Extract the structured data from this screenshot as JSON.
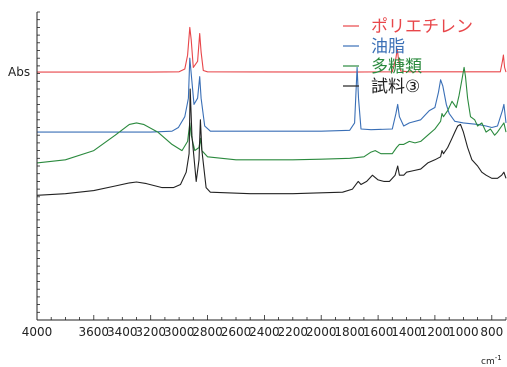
{
  "chart_data": {
    "type": "line",
    "title": "",
    "ylabel": "Abs",
    "xunit": "cm",
    "xunit_exp": "-1",
    "xlim": [
      4000,
      700
    ],
    "xticks": [
      4000,
      3600,
      3200,
      2800,
      2400,
      2000,
      1600,
      1200,
      800
    ],
    "xtick_labels": [
      "4000",
      "3600",
      "3200",
      "2800",
      "2400",
      "2000",
      "1600",
      "1200",
      "800"
    ],
    "extra_xtick_labels": [
      {
        "value": 3400,
        "label": "3400"
      },
      {
        "value": 3000,
        "label": "3000"
      },
      {
        "value": 2600,
        "label": "2600"
      },
      {
        "value": 2200,
        "label": "2200"
      },
      {
        "value": 1800,
        "label": "1800"
      },
      {
        "value": 1400,
        "label": "1400"
      },
      {
        "value": 1000,
        "label": "1000"
      }
    ],
    "ylim": [
      0,
      100
    ],
    "grid": false,
    "legend_position": "top-right",
    "series": [
      {
        "name": "ポリエチレン",
        "color": "#e8464a",
        "points": [
          [
            4000,
            80.5
          ],
          [
            3200,
            80.5
          ],
          [
            3000,
            80.6
          ],
          [
            2960,
            81.5
          ],
          [
            2940,
            86
          ],
          [
            2925,
            95
          ],
          [
            2915,
            91
          ],
          [
            2900,
            82
          ],
          [
            2870,
            84
          ],
          [
            2855,
            93
          ],
          [
            2845,
            87
          ],
          [
            2830,
            81
          ],
          [
            2800,
            80.6
          ],
          [
            1800,
            80.5
          ],
          [
            1500,
            80.6
          ],
          [
            1475,
            85
          ],
          [
            1465,
            88
          ],
          [
            1455,
            84
          ],
          [
            1440,
            80.8
          ],
          [
            1380,
            80.6
          ],
          [
            740,
            80.6
          ],
          [
            725,
            84
          ],
          [
            718,
            86
          ],
          [
            710,
            82
          ],
          [
            700,
            80.5
          ]
        ]
      },
      {
        "name": "油脂",
        "color": "#3a6fb6",
        "points": [
          [
            4000,
            61
          ],
          [
            3200,
            61
          ],
          [
            3050,
            61.3
          ],
          [
            3005,
            62.5
          ],
          [
            2960,
            66
          ],
          [
            2935,
            72
          ],
          [
            2925,
            85
          ],
          [
            2915,
            80
          ],
          [
            2895,
            70
          ],
          [
            2870,
            72
          ],
          [
            2855,
            79
          ],
          [
            2845,
            72
          ],
          [
            2820,
            63
          ],
          [
            2780,
            61.3
          ],
          [
            2000,
            61.3
          ],
          [
            1800,
            61.6
          ],
          [
            1765,
            64
          ],
          [
            1748,
            82
          ],
          [
            1738,
            72
          ],
          [
            1720,
            62
          ],
          [
            1650,
            61.8
          ],
          [
            1500,
            62
          ],
          [
            1475,
            67
          ],
          [
            1462,
            70
          ],
          [
            1450,
            66
          ],
          [
            1420,
            63
          ],
          [
            1380,
            64
          ],
          [
            1300,
            65
          ],
          [
            1240,
            68
          ],
          [
            1200,
            69
          ],
          [
            1175,
            74
          ],
          [
            1160,
            78
          ],
          [
            1145,
            76
          ],
          [
            1120,
            70
          ],
          [
            1100,
            67
          ],
          [
            1060,
            64.5
          ],
          [
            1000,
            64
          ],
          [
            900,
            63.5
          ],
          [
            840,
            63
          ],
          [
            800,
            62.5
          ],
          [
            760,
            63
          ],
          [
            725,
            68
          ],
          [
            715,
            70
          ],
          [
            705,
            66
          ],
          [
            700,
            64
          ]
        ]
      },
      {
        "name": "多糖類",
        "color": "#2b8a3e",
        "points": [
          [
            4000,
            51
          ],
          [
            3800,
            52
          ],
          [
            3600,
            55
          ],
          [
            3450,
            60
          ],
          [
            3350,
            63.5
          ],
          [
            3300,
            64
          ],
          [
            3250,
            63.5
          ],
          [
            3150,
            61
          ],
          [
            3050,
            57
          ],
          [
            2980,
            55
          ],
          [
            2940,
            58
          ],
          [
            2925,
            64
          ],
          [
            2915,
            60
          ],
          [
            2890,
            55
          ],
          [
            2860,
            56
          ],
          [
            2850,
            59
          ],
          [
            2840,
            55
          ],
          [
            2800,
            53
          ],
          [
            2600,
            52
          ],
          [
            2200,
            52
          ],
          [
            2000,
            52.2
          ],
          [
            1800,
            52.5
          ],
          [
            1700,
            53
          ],
          [
            1650,
            54.5
          ],
          [
            1620,
            55
          ],
          [
            1580,
            54
          ],
          [
            1500,
            54
          ],
          [
            1470,
            56
          ],
          [
            1450,
            57
          ],
          [
            1420,
            57
          ],
          [
            1380,
            58
          ],
          [
            1340,
            57.5
          ],
          [
            1300,
            58
          ],
          [
            1250,
            60
          ],
          [
            1200,
            62
          ],
          [
            1160,
            64.5
          ],
          [
            1150,
            67
          ],
          [
            1140,
            66
          ],
          [
            1110,
            68
          ],
          [
            1080,
            71
          ],
          [
            1050,
            69
          ],
          [
            1030,
            73
          ],
          [
            1010,
            78
          ],
          [
            995,
            82
          ],
          [
            985,
            79
          ],
          [
            970,
            72
          ],
          [
            950,
            66
          ],
          [
            920,
            65
          ],
          [
            900,
            63
          ],
          [
            870,
            64
          ],
          [
            840,
            61
          ],
          [
            810,
            62
          ],
          [
            780,
            60
          ],
          [
            760,
            61
          ],
          [
            730,
            63
          ],
          [
            715,
            64
          ],
          [
            700,
            61
          ]
        ]
      },
      {
        "name": "試料③",
        "color": "#222222",
        "points": [
          [
            4000,
            40.5
          ],
          [
            3800,
            41
          ],
          [
            3600,
            42
          ],
          [
            3450,
            43.5
          ],
          [
            3350,
            44.5
          ],
          [
            3300,
            44.8
          ],
          [
            3230,
            44.3
          ],
          [
            3120,
            43
          ],
          [
            3040,
            43
          ],
          [
            2990,
            44
          ],
          [
            2950,
            48
          ],
          [
            2930,
            54
          ],
          [
            2922,
            75
          ],
          [
            2910,
            60
          ],
          [
            2880,
            45
          ],
          [
            2860,
            52
          ],
          [
            2850,
            65
          ],
          [
            2840,
            55
          ],
          [
            2810,
            43
          ],
          [
            2780,
            41.5
          ],
          [
            2500,
            41
          ],
          [
            2200,
            41
          ],
          [
            2000,
            41.3
          ],
          [
            1850,
            41.5
          ],
          [
            1780,
            42.5
          ],
          [
            1740,
            45
          ],
          [
            1720,
            44
          ],
          [
            1680,
            45
          ],
          [
            1640,
            47
          ],
          [
            1600,
            45.5
          ],
          [
            1560,
            45
          ],
          [
            1520,
            45
          ],
          [
            1480,
            47
          ],
          [
            1462,
            50
          ],
          [
            1450,
            47
          ],
          [
            1420,
            47
          ],
          [
            1400,
            48
          ],
          [
            1350,
            48.5
          ],
          [
            1300,
            49
          ],
          [
            1250,
            51
          ],
          [
            1200,
            52
          ],
          [
            1160,
            53
          ],
          [
            1150,
            55
          ],
          [
            1140,
            54
          ],
          [
            1110,
            56
          ],
          [
            1080,
            59
          ],
          [
            1060,
            61
          ],
          [
            1040,
            63
          ],
          [
            1020,
            63.5
          ],
          [
            1000,
            61
          ],
          [
            970,
            56
          ],
          [
            940,
            52
          ],
          [
            900,
            50
          ],
          [
            870,
            48
          ],
          [
            840,
            47
          ],
          [
            800,
            46
          ],
          [
            760,
            46
          ],
          [
            730,
            47
          ],
          [
            715,
            48
          ],
          [
            700,
            46
          ]
        ]
      }
    ]
  }
}
